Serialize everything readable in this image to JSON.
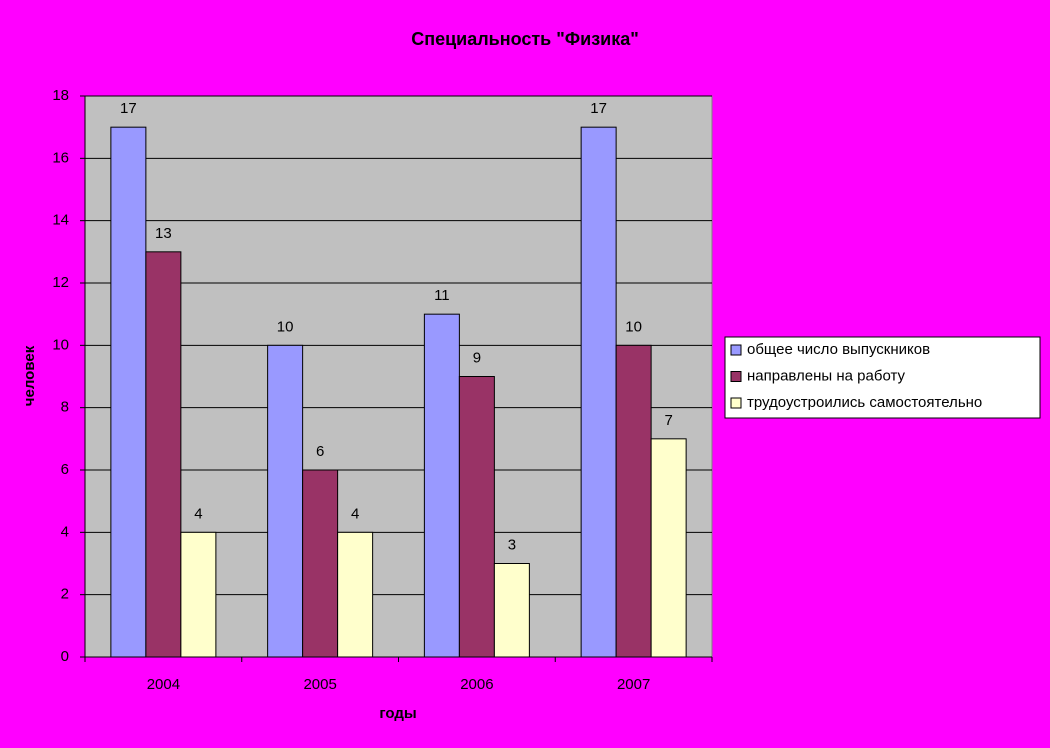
{
  "chart_data": {
    "type": "bar",
    "title": "Специальность \"Физика\"",
    "x_label": "годы",
    "y_label": "человек",
    "categories": [
      "2004",
      "2005",
      "2006",
      "2007"
    ],
    "series": [
      {
        "name": "общее число выпускников",
        "color": "#9999ff",
        "values": [
          17,
          10,
          11,
          17
        ]
      },
      {
        "name": "направлены на работу",
        "color": "#993366",
        "values": [
          13,
          6,
          9,
          10
        ]
      },
      {
        "name": "трудоустроились самостоятельно",
        "color": "#ffffcc",
        "values": [
          4,
          4,
          3,
          7
        ]
      }
    ],
    "ylim": [
      0,
      18
    ],
    "yticks": [
      0,
      2,
      4,
      6,
      8,
      10,
      12,
      14,
      16,
      18
    ],
    "grid": true,
    "legend": "right"
  }
}
